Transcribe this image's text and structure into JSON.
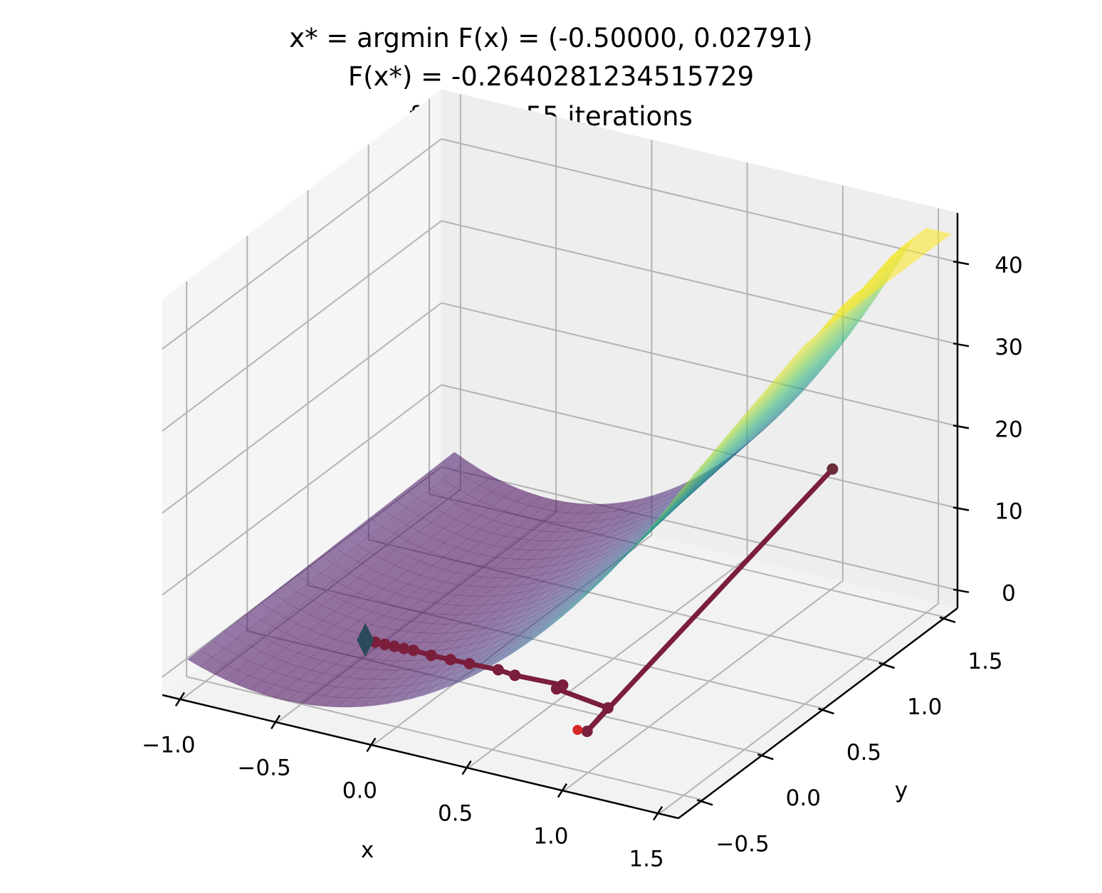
{
  "chart_data": {
    "type": "surface3d",
    "title_lines": [
      "x* = argmin F(x) = (-0.50000, 0.02791)",
      "F(x*) = -0.2640281234515729",
      "found in 55 iterations"
    ],
    "xlabel": "x",
    "ylabel": "y",
    "zlabel": "",
    "xlim": [
      -1.1,
      1.6
    ],
    "ylim": [
      -0.7,
      1.6
    ],
    "zlim": [
      -2.2,
      46
    ],
    "x_ticks": [
      "−1.0",
      "−0.5",
      "0.0",
      "0.5",
      "1.0",
      "1.5"
    ],
    "x_tick_values": [
      -1.0,
      -0.5,
      0.0,
      0.5,
      1.0,
      1.5
    ],
    "y_ticks": [
      "−0.5",
      "0.0",
      "0.5",
      "1.0",
      "1.5"
    ],
    "y_tick_values": [
      -0.5,
      0.0,
      0.5,
      1.0,
      1.5
    ],
    "z_ticks": [
      "0",
      "10",
      "20",
      "30",
      "40"
    ],
    "z_tick_values": [
      0,
      10,
      20,
      30,
      40
    ],
    "grid": true,
    "colormap": "viridis",
    "surface_alpha": 0.55,
    "path": {
      "color": "#7a1e3c",
      "start_color": "#6b2d3a",
      "end_marker_color": "#2c4a5a",
      "points": [
        [
          1.2,
          1.2,
          17.0
        ],
        [
          0.9,
          -0.35,
          0.6
        ],
        [
          0.85,
          -0.1,
          0.4
        ],
        [
          0.55,
          -0.05,
          0.5
        ],
        [
          0.55,
          0.0,
          0.4
        ],
        [
          0.3,
          0.0,
          0.2
        ],
        [
          0.2,
          0.02,
          0.1
        ],
        [
          0.05,
          0.02,
          0.0
        ],
        [
          -0.05,
          0.02,
          -0.05
        ],
        [
          -0.15,
          0.02,
          -0.1
        ],
        [
          -0.25,
          0.03,
          -0.15
        ],
        [
          -0.3,
          0.03,
          -0.2
        ],
        [
          -0.35,
          0.03,
          -0.22
        ],
        [
          -0.4,
          0.03,
          -0.25
        ],
        [
          -0.45,
          0.03,
          -0.26
        ],
        [
          -0.5,
          0.02791,
          -0.264
        ]
      ],
      "initial_point": [
        0.85,
        -0.35,
        0.5
      ]
    }
  }
}
